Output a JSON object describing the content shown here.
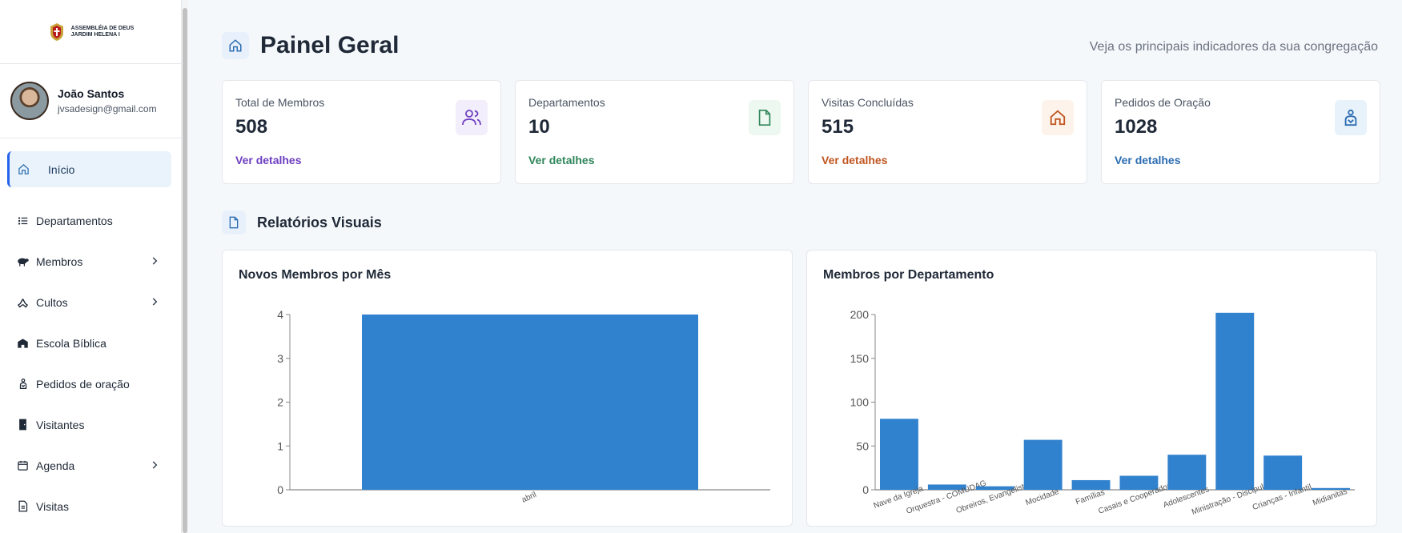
{
  "brand": {
    "line1": "ASSEMBLÉIA DE DEUS",
    "line2": "JARDIM HELENA I"
  },
  "user": {
    "name": "João Santos",
    "email": "jvsadesign@gmail.com"
  },
  "sidebar": {
    "items": [
      {
        "label": "Início",
        "icon": "home-icon",
        "active": true,
        "expandable": false
      },
      {
        "label": "Departamentos",
        "icon": "list-icon",
        "active": false,
        "expandable": false
      },
      {
        "label": "Membros",
        "icon": "sheep-icon",
        "active": false,
        "expandable": true
      },
      {
        "label": "Cultos",
        "icon": "praying-hands-icon",
        "active": false,
        "expandable": true
      },
      {
        "label": "Escola Bíblica",
        "icon": "school-icon",
        "active": false,
        "expandable": false
      },
      {
        "label": "Pedidos de oração",
        "icon": "praying-person-icon",
        "active": false,
        "expandable": false
      },
      {
        "label": "Visitantes",
        "icon": "door-icon",
        "active": false,
        "expandable": false
      },
      {
        "label": "Agenda",
        "icon": "calendar-icon",
        "active": true,
        "expandable": true
      },
      {
        "label": "Visitas",
        "icon": "document-icon",
        "active": false,
        "expandable": false
      }
    ]
  },
  "header": {
    "title": "Painel Geral",
    "subtitle": "Veja os principais indicadores da sua congregação"
  },
  "cards": [
    {
      "label": "Total de Membros",
      "value": "508",
      "link": "Ver detalhes",
      "icon": "users-icon",
      "color": "#6d3fc0",
      "bg": "#f3eefb"
    },
    {
      "label": "Departamentos",
      "value": "10",
      "link": "Ver detalhes",
      "icon": "file-icon",
      "color": "#2f855a",
      "bg": "#ecf8f0"
    },
    {
      "label": "Visitas Concluídas",
      "value": "515",
      "link": "Ver detalhes",
      "icon": "home-icon",
      "color": "#c05621",
      "bg": "#fdf3ea"
    },
    {
      "label": "Pedidos de Oração",
      "value": "1028",
      "link": "Ver detalhes",
      "icon": "praying-person-icon",
      "color": "#2b6cb0",
      "bg": "#e7f2fb"
    }
  ],
  "section": {
    "title": "Relatórios Visuais"
  },
  "colors": {
    "accent": "#2b6cb0",
    "bar": "#3182ce"
  },
  "chart_data": [
    {
      "type": "bar",
      "title": "Novos Membros por Mês",
      "categories": [
        "abril"
      ],
      "values": [
        4
      ],
      "ylim": [
        0,
        4
      ],
      "yticks": [
        0,
        1,
        2,
        3,
        4
      ],
      "grid": false
    },
    {
      "type": "bar",
      "title": "Membros por Departamento",
      "categories": [
        "Nave da Igreja",
        "Orquestra - COMUDAG",
        "Obreiros, Evangelistas",
        "Mocidade",
        "Famílias",
        "Casais e Cooperadores",
        "Adolescentes",
        "Ministração - Discipulado",
        "Crianças - Infantil",
        "Midianitas"
      ],
      "values": [
        81,
        6,
        4,
        57,
        11,
        16,
        40,
        202,
        39,
        2
      ],
      "ylim": [
        0,
        200
      ],
      "yticks": [
        0,
        50,
        100,
        150,
        200
      ],
      "grid": false
    }
  ]
}
